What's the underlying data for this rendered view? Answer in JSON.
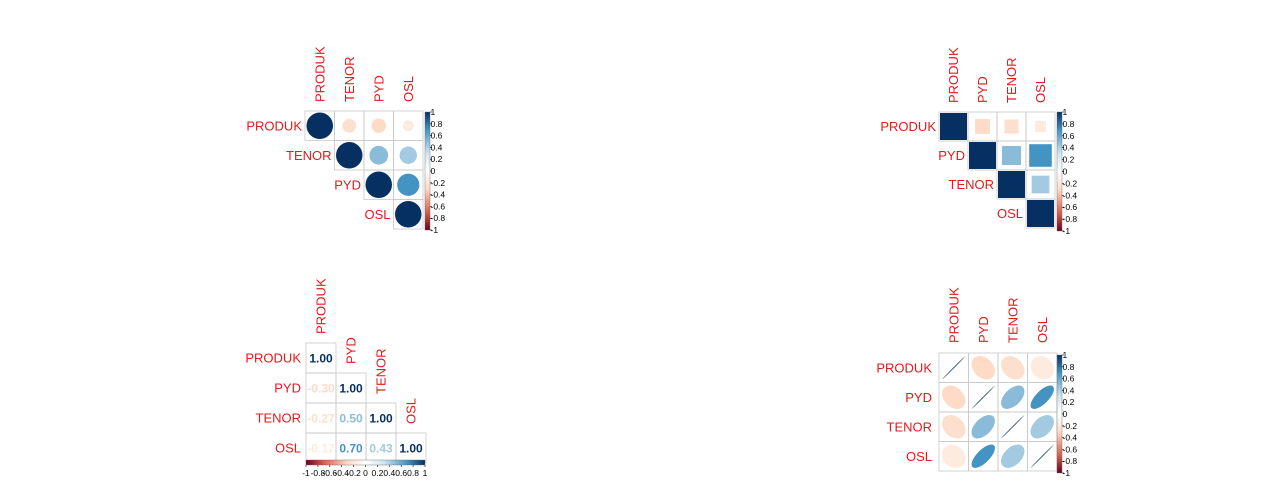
{
  "colors": {
    "label": "#e31a1c",
    "grid": "#c8c8c8",
    "scale_stops": [
      "#67001f",
      "#d6604d",
      "#fddbc7",
      "#ffffff",
      "#d1e5f0",
      "#4393c3",
      "#053061"
    ]
  },
  "chart_data": [
    {
      "type": "heatmap",
      "method": "circle",
      "layout": "upper",
      "variables": [
        "PRODUK",
        "TENOR",
        "PYD",
        "OSL"
      ],
      "matrix": [
        [
          1.0,
          -0.27,
          -0.3,
          -0.17
        ],
        [
          -0.27,
          1.0,
          0.5,
          0.43
        ],
        [
          -0.3,
          0.5,
          1.0,
          0.7
        ],
        [
          -0.17,
          0.43,
          0.7,
          1.0
        ]
      ],
      "legend": {
        "ticks": [
          "1",
          "0.8",
          "0.6",
          "0.4",
          "0.2",
          "0",
          "-0.2",
          "-0.4",
          "-0.6",
          "-0.8",
          "-1"
        ],
        "orientation": "vertical"
      }
    },
    {
      "type": "heatmap",
      "method": "square",
      "layout": "upper",
      "variables": [
        "PRODUK",
        "PYD",
        "TENOR",
        "OSL"
      ],
      "matrix": [
        [
          1.0,
          -0.3,
          -0.27,
          -0.17
        ],
        [
          -0.3,
          1.0,
          0.5,
          0.7
        ],
        [
          -0.27,
          0.5,
          1.0,
          0.43
        ],
        [
          -0.17,
          0.7,
          0.43,
          1.0
        ]
      ],
      "legend": {
        "ticks": [
          "1",
          "0.8",
          "0.6",
          "0.4",
          "0.2",
          "0",
          "-0.2",
          "-0.4",
          "-0.6",
          "-0.8",
          "-1"
        ],
        "orientation": "vertical"
      }
    },
    {
      "type": "heatmap",
      "method": "number",
      "layout": "lower",
      "variables": [
        "PRODUK",
        "PYD",
        "TENOR",
        "OSL"
      ],
      "matrix": [
        [
          1.0,
          -0.3,
          -0.27,
          -0.17
        ],
        [
          -0.3,
          1.0,
          0.5,
          0.7
        ],
        [
          -0.27,
          0.5,
          1.0,
          0.43
        ],
        [
          -0.17,
          0.7,
          0.43,
          1.0
        ]
      ],
      "cell_labels": [
        [
          "1.00",
          "",
          "",
          ""
        ],
        [
          "-0.30",
          "1.00",
          "",
          ""
        ],
        [
          "-0.27",
          "0.50",
          "1.00",
          ""
        ],
        [
          "-0.17",
          "0.70",
          "0.43",
          "1.00"
        ]
      ],
      "legend": {
        "ticks": [
          "-1",
          "-0.8",
          "-0.6",
          "-0.4",
          "-0.2",
          "0",
          "0.2",
          "0.4",
          "0.6",
          "0.8",
          "1"
        ],
        "orientation": "horizontal"
      }
    },
    {
      "type": "heatmap",
      "method": "ellipse",
      "layout": "full",
      "variables": [
        "PRODUK",
        "PYD",
        "TENOR",
        "OSL"
      ],
      "matrix": [
        [
          1.0,
          -0.3,
          -0.27,
          -0.17
        ],
        [
          -0.3,
          1.0,
          0.5,
          0.7
        ],
        [
          -0.27,
          0.5,
          1.0,
          0.43
        ],
        [
          -0.17,
          0.7,
          0.43,
          1.0
        ]
      ],
      "legend": {
        "ticks": [
          "1",
          "0.8",
          "0.6",
          "0.4",
          "0.2",
          "0",
          "-0.2",
          "-0.4",
          "-0.6",
          "-0.8",
          "-1"
        ],
        "orientation": "vertical"
      }
    }
  ]
}
